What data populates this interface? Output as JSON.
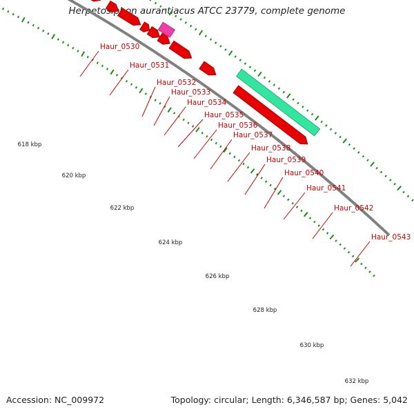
{
  "title": "Herpetosiphon aurantiacus ATCC 23779, complete genome",
  "footer": {
    "accession": "Accession: NC_009972",
    "summary": "Topology: circular; Length: 6,346,587 bp; Genes: 5,042"
  },
  "colors": {
    "cds": "#e60000",
    "cds_dark": "#a00000",
    "pseudo": "#666666",
    "rna_magenta": "#ee3fa8",
    "rna_teal": "#33e6a0",
    "backbone": "#808080",
    "tick": "#1a8a1a",
    "label": "#cc0000"
  },
  "ticks": [
    {
      "label": "618 kbp"
    },
    {
      "label": "620 kbp"
    },
    {
      "label": "622 kbp"
    },
    {
      "label": "624 kbp"
    },
    {
      "label": "626 kbp"
    },
    {
      "label": "628 kbp"
    },
    {
      "label": "630 kbp"
    },
    {
      "label": "632 kbp"
    }
  ],
  "genes": [
    {
      "name": "Haur_0530"
    },
    {
      "name": "Haur_0531"
    },
    {
      "name": "Haur_0532"
    },
    {
      "name": "Haur_0533"
    },
    {
      "name": "Haur_0534"
    },
    {
      "name": "Haur_0535"
    },
    {
      "name": "Haur_0536"
    },
    {
      "name": "Haur_0537"
    },
    {
      "name": "Haur_0538"
    },
    {
      "name": "Haur_0539"
    },
    {
      "name": "Haur_0540"
    },
    {
      "name": "Haur_0541"
    },
    {
      "name": "Haur_0542"
    },
    {
      "name": "Haur_0543"
    }
  ]
}
